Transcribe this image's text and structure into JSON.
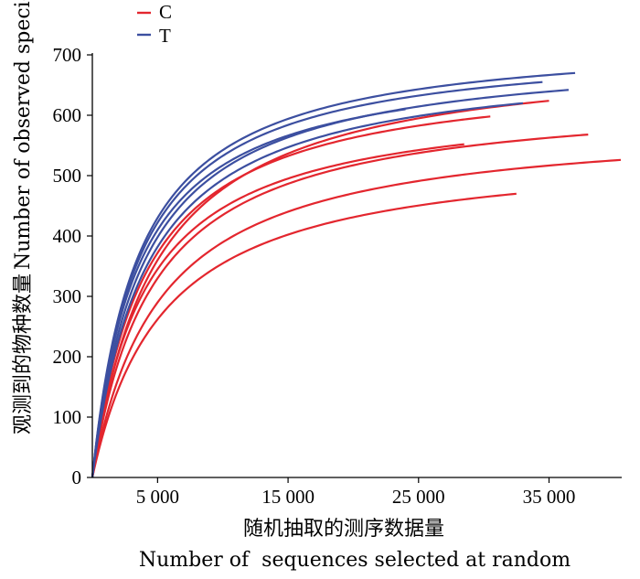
{
  "chart_data": {
    "type": "line",
    "title": "",
    "xlabel_cn": "随机抽取的测序数据量",
    "xlabel": "Number of  sequences selected at random",
    "ylabel_cn": "观测到的物种数量",
    "ylabel": "Number of observed species",
    "x_ticks": [
      "5 000",
      "15 000",
      "25 000",
      "35 000"
    ],
    "x_tick_values": [
      5000,
      15000,
      25000,
      35000
    ],
    "y_ticks": [
      "0",
      "100",
      "200",
      "300",
      "400",
      "500",
      "600",
      "700"
    ],
    "y_tick_values": [
      0,
      100,
      200,
      300,
      400,
      500,
      600,
      700
    ],
    "xlim": [
      0,
      40500
    ],
    "ylim": [
      0,
      700
    ],
    "legend_position": "top-left",
    "legend": [
      {
        "label": "C",
        "color": "#e3262e"
      },
      {
        "label": "T",
        "color": "#3c4fa0"
      }
    ],
    "series": [
      {
        "group": "C",
        "color": "#e3262e",
        "x_end": 40500,
        "y_end": 526,
        "y_5000": 290
      },
      {
        "group": "C",
        "color": "#e3262e",
        "x_end": 38000,
        "y_end": 568,
        "y_5000": 330
      },
      {
        "group": "C",
        "color": "#e3262e",
        "x_end": 32500,
        "y_end": 470,
        "y_5000": 262
      },
      {
        "group": "C",
        "color": "#e3262e",
        "x_end": 35000,
        "y_end": 624,
        "y_5000": 360
      },
      {
        "group": "C",
        "color": "#e3262e",
        "x_end": 30500,
        "y_end": 598,
        "y_5000": 372
      },
      {
        "group": "C",
        "color": "#e3262e",
        "x_end": 28500,
        "y_end": 552,
        "y_5000": 345
      },
      {
        "group": "T",
        "color": "#3c4fa0",
        "x_end": 37000,
        "y_end": 670,
        "y_5000": 430
      },
      {
        "group": "T",
        "color": "#3c4fa0",
        "x_end": 34500,
        "y_end": 655,
        "y_5000": 422
      },
      {
        "group": "T",
        "color": "#3c4fa0",
        "x_end": 36500,
        "y_end": 642,
        "y_5000": 398
      },
      {
        "group": "T",
        "color": "#3c4fa0",
        "x_end": 24000,
        "y_end": 610,
        "y_5000": 410
      },
      {
        "group": "T",
        "color": "#3c4fa0",
        "x_end": 33000,
        "y_end": 620,
        "y_5000": 382
      }
    ]
  }
}
